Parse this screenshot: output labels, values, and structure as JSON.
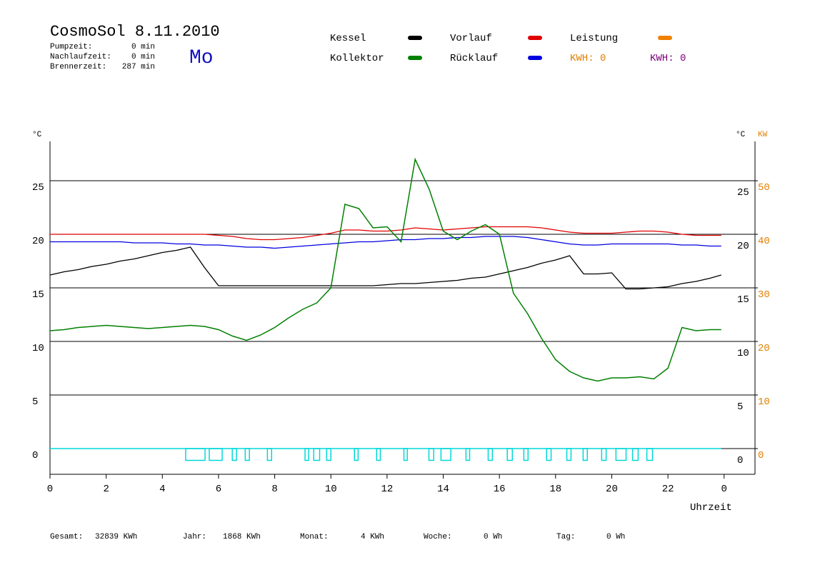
{
  "chart_data": {
    "type": "line",
    "title": "CosmoSol 8.11.2010",
    "weekday": "Mo",
    "info": [
      {
        "label": "Pumpzeit:",
        "value": "0 min"
      },
      {
        "label": "Nachlaufzeit:",
        "value": "0 min"
      },
      {
        "label": "Brennerzeit:",
        "value": "287 min"
      }
    ],
    "y_unit": "°C",
    "y2_unit": "KW",
    "x_label": "Uhrzeit",
    "x": [
      0,
      0.5,
      1,
      1.5,
      2,
      2.5,
      3,
      3.5,
      4,
      4.5,
      5,
      5.5,
      6,
      6.5,
      7,
      7.5,
      8,
      8.5,
      9,
      9.5,
      10,
      10.5,
      11,
      11.5,
      12,
      12.5,
      13,
      13.5,
      14,
      14.5,
      15,
      15.5,
      16,
      16.5,
      17,
      17.5,
      18,
      18.5,
      19,
      19.5,
      20,
      20.5,
      21,
      21.5,
      22,
      22.5,
      23,
      23.5,
      23.9
    ],
    "series": [
      {
        "name": "Kessel",
        "color": "#000000",
        "values": [
          16.2,
          16.5,
          16.7,
          17.0,
          17.2,
          17.5,
          17.7,
          18.0,
          18.3,
          18.5,
          18.8,
          16.9,
          15.2,
          15.2,
          15.2,
          15.2,
          15.2,
          15.2,
          15.2,
          15.2,
          15.2,
          15.2,
          15.2,
          15.2,
          15.3,
          15.4,
          15.4,
          15.5,
          15.6,
          15.7,
          15.9,
          16.0,
          16.3,
          16.6,
          16.9,
          17.3,
          17.6,
          18.0,
          16.3,
          16.3,
          16.4,
          14.9,
          14.9,
          15.0,
          15.1,
          15.4,
          15.6,
          15.9,
          16.2
        ]
      },
      {
        "name": "Kollektor",
        "color": "#008000",
        "values": [
          11.0,
          11.1,
          11.3,
          11.4,
          11.5,
          11.4,
          11.3,
          11.2,
          11.3,
          11.4,
          11.5,
          11.4,
          11.1,
          10.5,
          10.1,
          10.6,
          11.3,
          12.2,
          13.0,
          13.6,
          15.0,
          22.8,
          22.4,
          20.6,
          20.7,
          19.3,
          27.0,
          24.2,
          20.3,
          19.5,
          20.3,
          20.9,
          20.0,
          14.5,
          12.6,
          10.3,
          8.3,
          7.2,
          6.6,
          6.3,
          6.6,
          6.6,
          6.7,
          6.5,
          7.5,
          11.3,
          11.0,
          11.1,
          11.1
        ]
      },
      {
        "name": "Vorlauf",
        "color": "#e00000",
        "values": [
          20.0,
          20.0,
          20.0,
          20.0,
          20.0,
          20.0,
          20.0,
          20.0,
          20.0,
          20.0,
          20.0,
          20.0,
          19.9,
          19.8,
          19.6,
          19.5,
          19.5,
          19.6,
          19.7,
          19.9,
          20.1,
          20.4,
          20.4,
          20.3,
          20.3,
          20.4,
          20.6,
          20.5,
          20.4,
          20.5,
          20.6,
          20.7,
          20.7,
          20.7,
          20.7,
          20.6,
          20.4,
          20.2,
          20.1,
          20.1,
          20.1,
          20.2,
          20.3,
          20.3,
          20.2,
          20.0,
          19.9,
          19.9,
          19.9
        ]
      },
      {
        "name": "Rücklauf",
        "color": "#0000e0",
        "values": [
          19.3,
          19.3,
          19.3,
          19.3,
          19.3,
          19.3,
          19.2,
          19.2,
          19.2,
          19.1,
          19.1,
          19.0,
          19.0,
          18.9,
          18.8,
          18.8,
          18.7,
          18.8,
          18.9,
          19.0,
          19.1,
          19.2,
          19.3,
          19.3,
          19.4,
          19.5,
          19.5,
          19.6,
          19.6,
          19.7,
          19.7,
          19.8,
          19.8,
          19.8,
          19.7,
          19.5,
          19.3,
          19.1,
          19.0,
          19.0,
          19.1,
          19.1,
          19.1,
          19.1,
          19.1,
          19.0,
          19.0,
          18.9,
          18.9
        ]
      }
    ],
    "legend_extra": [
      {
        "name": "Leistung",
        "color": "#f08000"
      }
    ],
    "kwh": [
      {
        "label": "KWH: 0",
        "color": "#e08000"
      },
      {
        "label": "KWH: 0",
        "color": "#800080"
      }
    ],
    "pump": {
      "color": "#00d8d8",
      "level": -1.1,
      "intervals": [
        [
          4.83,
          5.52
        ],
        [
          5.67,
          6.13
        ],
        [
          6.49,
          6.64
        ],
        [
          6.95,
          7.1
        ],
        [
          7.74,
          7.89
        ],
        [
          9.08,
          9.21
        ],
        [
          9.39,
          9.6
        ],
        [
          9.85,
          10.0
        ],
        [
          10.84,
          10.97
        ],
        [
          11.63,
          11.76
        ],
        [
          12.6,
          12.72
        ],
        [
          13.49,
          13.66
        ],
        [
          13.92,
          14.27
        ],
        [
          14.81,
          14.94
        ],
        [
          15.6,
          15.75
        ],
        [
          16.28,
          16.46
        ],
        [
          16.87,
          17.02
        ],
        [
          17.68,
          17.84
        ],
        [
          18.4,
          18.55
        ],
        [
          18.98,
          19.13
        ],
        [
          19.64,
          19.8
        ],
        [
          20.15,
          20.51
        ],
        [
          20.74,
          20.94
        ],
        [
          21.25,
          21.45
        ]
      ]
    },
    "xlim": [
      0,
      25.1
    ],
    "xticks": [
      0,
      2,
      4,
      6,
      8,
      10,
      12,
      14,
      16,
      18,
      20,
      22,
      {
        "value": 24,
        "label": "0"
      }
    ],
    "ylim": [
      -2.4,
      28.67
    ],
    "yticks": [
      0,
      5,
      10,
      15,
      20,
      25
    ],
    "y2lim": [
      -4.8,
      57.34
    ],
    "y2ticks": [
      0,
      10,
      20,
      30,
      40,
      50
    ],
    "grid": true,
    "footer": [
      {
        "label": "Gesamt:",
        "value": "32839 KWh"
      },
      {
        "label": "Jahr:",
        "value": "1868 KWh"
      },
      {
        "label": "Monat:",
        "value": "4 KWh"
      },
      {
        "label": "Woche:",
        "value": "0 Wh"
      },
      {
        "label": "Tag:",
        "value": "0 Wh"
      }
    ]
  }
}
